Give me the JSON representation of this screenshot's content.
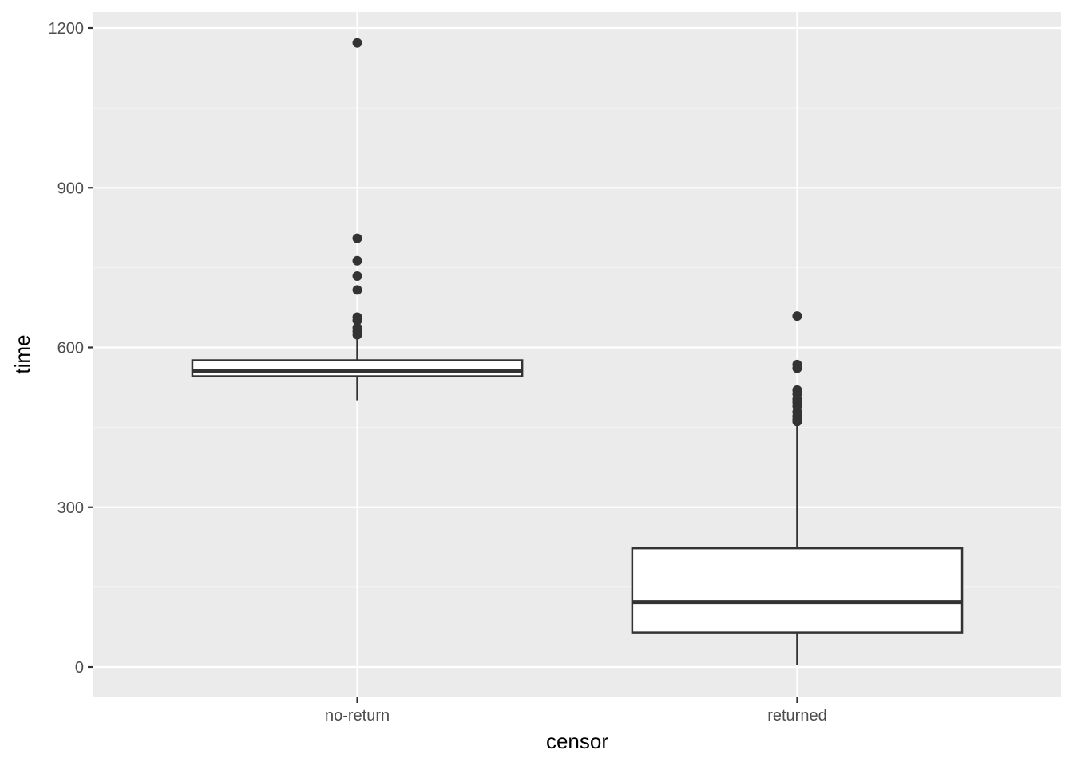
{
  "chart_data": {
    "type": "boxplot",
    "title": "",
    "xlabel": "censor",
    "ylabel": "time",
    "ylim": [
      -58,
      1230
    ],
    "y_ticks": [
      0,
      300,
      600,
      900,
      1200
    ],
    "y_minor_ticks": [
      150,
      450,
      750,
      1050
    ],
    "grid": true,
    "legend": "none",
    "categories": [
      "no-return",
      "returned"
    ],
    "boxes": [
      {
        "category": "no-return",
        "whisker_low": 501,
        "q1": 546,
        "median": 555,
        "q3": 576,
        "whisker_high": 621,
        "outliers": [
          624,
          630,
          637,
          651,
          657,
          708,
          734,
          763,
          805,
          1172
        ]
      },
      {
        "category": "returned",
        "whisker_low": 3,
        "q1": 65,
        "median": 122,
        "q3": 223,
        "whisker_high": 455,
        "outliers": [
          461,
          465,
          471,
          479,
          490,
          497,
          503,
          513,
          520,
          561,
          568,
          659
        ]
      }
    ],
    "colors": {
      "panel_background": "#ebebeb",
      "grid_major": "#ffffff",
      "grid_minor": "#f5f5f5",
      "box_fill": "#ffffff",
      "box_stroke": "#333333",
      "outlier": "#333333",
      "tick_text": "#4d4d4d",
      "axis_title": "#000000"
    }
  }
}
